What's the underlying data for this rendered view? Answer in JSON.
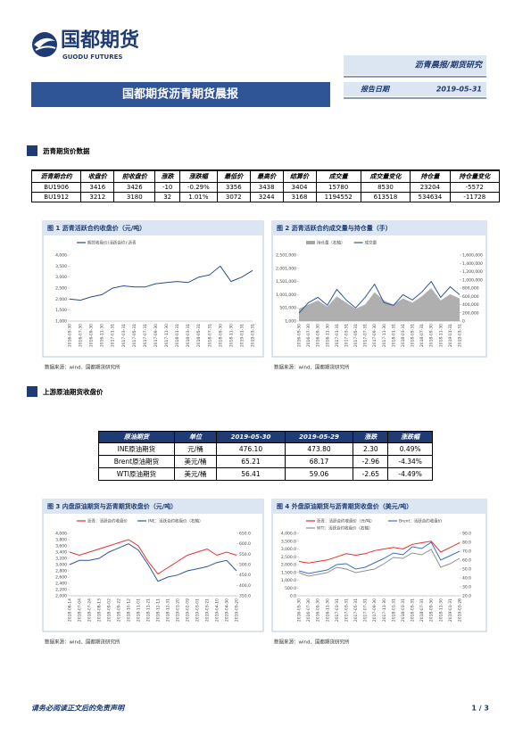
{
  "header": {
    "logo_name": "国都期货",
    "logo_subtitle": "GUODU FUTURES",
    "category": "沥青晨报/期货研究",
    "title": "国都期货沥青期货晨报",
    "date_label": "报告日期",
    "date": "2019-05-31"
  },
  "sections": [
    {
      "title": "沥青期货价数据"
    },
    {
      "title": "上游原油期货收盘价"
    }
  ],
  "tables": [
    {
      "header": [
        "沥青期合约",
        "收盘价",
        "前收盘价",
        "涨跌",
        "涨跌幅",
        "最低价",
        "最高价",
        "结算价",
        "成交量",
        "成交量变化",
        "持仓量",
        "持仓量变化"
      ],
      "rows": [
        [
          "BU1906",
          "3416",
          "3426",
          "-10",
          "-0.29%",
          "3356",
          "3438",
          "3404",
          "15780",
          "8530",
          "23204",
          "-5572"
        ],
        [
          "BU1912",
          "3212",
          "3180",
          "32",
          "1.01%",
          "3072",
          "3244",
          "3168",
          "1194552",
          "613518",
          "534634",
          "-11728"
        ]
      ]
    },
    {
      "header": [
        "原油期货",
        "单位",
        "2019-05-30",
        "2019-05-29",
        "涨跌",
        "涨跌幅"
      ],
      "rows": [
        [
          "INE原油期货",
          "元/桶",
          "476.10",
          "473.80",
          "2.30",
          "0.49%"
        ],
        [
          "Brent原油期货",
          "美元/桶",
          "65.21",
          "68.17",
          "-2.96",
          "-4.34%"
        ],
        [
          "WTI原油期货",
          "美元/桶",
          "56.41",
          "59.06",
          "-2.65",
          "-4.49%"
        ]
      ]
    }
  ],
  "figures": [
    {
      "caption": "图 1 沥青活跃合约收盘价（元/吨）",
      "source": "数据来源：wind、国都期货研究所",
      "chart": {
        "type": "line",
        "categories": [
          "2016-05-30",
          "2016-07-30",
          "2016-09-30",
          "2016-11-30",
          "2017-01-31",
          "2017-03-31",
          "2017-05-31",
          "2017-07-31",
          "2017-09-30",
          "2017-11-30",
          "2018-01-31",
          "2018-03-31",
          "2018-05-31",
          "2018-07-31",
          "2018-09-30",
          "2018-11-30",
          "2019-01-31",
          "2019-03-31"
        ],
        "ylim": [
          1000,
          4000
        ],
        "yticks": [
          {
            "value": 1000,
            "label": "1,000"
          },
          {
            "value": 1500,
            "label": "1,500"
          },
          {
            "value": 2000,
            "label": "2,000"
          },
          {
            "value": 2500,
            "label": "2,500"
          },
          {
            "value": 3000,
            "label": "3,000"
          },
          {
            "value": 3500,
            "label": "3,500"
          },
          {
            "value": 4000,
            "label": "4,000"
          }
        ],
        "series": [
          {
            "name": "期货收盘价(活跃合约):沥青",
            "color": "#2a4a8c",
            "values": [
              2000,
              1950,
              2100,
              2200,
              2500,
              2600,
              2550,
              2550,
              2700,
              2750,
              2800,
              2750,
              3000,
              3100,
              3500,
              2800,
              3000,
              3300
            ]
          }
        ]
      }
    },
    {
      "caption": "图 2 沥青活跃合约成交量与持仓量（手）",
      "source": "数据来源：wind、国都期货研究所",
      "chart": {
        "type": "line",
        "categories": [
          "2016-05-30",
          "2016-07-30",
          "2016-09-30",
          "2016-11-30",
          "2017-01-31",
          "2017-03-31",
          "2017-05-31",
          "2017-07-31",
          "2017-09-30",
          "2017-11-30",
          "2018-01-31",
          "2018-03-31",
          "2018-05-31",
          "2018-07-31",
          "2018-09-30",
          "2018-11-30",
          "2019-01-31",
          "2019-03-31"
        ],
        "ylim": [
          1000,
          2501000
        ],
        "yticks": [
          {
            "value": 1000,
            "label": "1,000"
          },
          {
            "value": 501000,
            "label": "501,000"
          },
          {
            "value": 1001000,
            "label": "1,001,000"
          },
          {
            "value": 1501000,
            "label": "1,501,000"
          },
          {
            "value": 2001000,
            "label": "2,001,000"
          },
          {
            "value": 2501000,
            "label": "2,501,000"
          }
        ],
        "y2lim": [
          0,
          1600000
        ],
        "y2ticks": [
          0,
          {
            "value": 200000,
            "label": "200,000"
          },
          {
            "value": 400000,
            "label": "400,000"
          },
          {
            "value": 600000,
            "label": "600,000"
          },
          {
            "value": 800000,
            "label": "800,000"
          },
          {
            "value": 1000000,
            "label": "1,000,000"
          },
          {
            "value": 1200000,
            "label": "1,200,000"
          },
          {
            "value": 1400000,
            "label": "1,400,000"
          },
          {
            "value": 1600000,
            "label": "1,600,000"
          }
        ],
        "series": [
          {
            "name": "持仓量（右轴）",
            "kind": "area",
            "axis": "y2",
            "color": "#a6a6a6",
            "values": [
              300000,
              400000,
              500000,
              350000,
              600000,
              450000,
              300000,
              400000,
              700000,
              500000,
              400000,
              550000,
              450000,
              600000,
              800000,
              500000,
              650000,
              550000
            ]
          },
          {
            "name": "成交量",
            "color": "#2f5597",
            "values": [
              300000,
              700000,
              900000,
              600000,
              1200000,
              800000,
              500000,
              900000,
              1400000,
              700000,
              600000,
              1000000,
              800000,
              1100000,
              1500000,
              900000,
              1300000,
              1000000
            ]
          }
        ]
      }
    },
    {
      "caption": "图 3 内盘原油期货与沥青期货收盘价（元/吨）",
      "source": "数据来源：wind、国都期货研究所",
      "chart": {
        "type": "line",
        "categories": [
          "2018-06-14",
          "2018-07-04",
          "2018-07-24",
          "2018-08-13",
          "2018-09-02",
          "2018-09-22",
          "2018-10-12",
          "2018-11-01",
          "2018-11-21",
          "2018-12-11",
          "2018-12-31",
          "2019-01-20",
          "2019-02-09",
          "2019-03-01",
          "2019-03-21",
          "2019-04-10",
          "2019-04-30",
          "2019-05-20"
        ],
        "ylim": [
          2000,
          4000
        ],
        "yticks": [
          {
            "value": 2000,
            "label": "2,000"
          },
          {
            "value": 2200,
            "label": "2,200"
          },
          {
            "value": 2400,
            "label": "2,400"
          },
          {
            "value": 2600,
            "label": "2,600"
          },
          {
            "value": 2800,
            "label": "2,800"
          },
          {
            "value": 3000,
            "label": "3,000"
          },
          {
            "value": 3200,
            "label": "3,200"
          },
          {
            "value": 3400,
            "label": "3,400"
          },
          {
            "value": 3600,
            "label": "3,600"
          },
          {
            "value": 3800,
            "label": "3,800"
          },
          {
            "value": 4000,
            "label": "4,000"
          }
        ],
        "y2lim": [
          350,
          650
        ],
        "y2ticks": [
          {
            "value": 350,
            "label": "350.0"
          },
          {
            "value": 400,
            "label": "400.0"
          },
          {
            "value": 450,
            "label": "450.0"
          },
          {
            "value": 500,
            "label": "500.0"
          },
          {
            "value": 550,
            "label": "550.0"
          },
          {
            "value": 600,
            "label": "600.0"
          },
          {
            "value": 650,
            "label": "650.0"
          }
        ],
        "series": [
          {
            "name": "沥青：活跃合约收盘价",
            "color": "#e03030",
            "values": [
              3400,
              3300,
              3400,
              3500,
              3600,
              3700,
              3800,
              3600,
              3100,
              2700,
              2900,
              3100,
              3300,
              3400,
              3500,
              3300,
              3400,
              3300
            ]
          },
          {
            "name": "INE：活跃合约收盘价（右轴）",
            "axis": "y2",
            "color": "#2f5597",
            "values": [
              500,
              520,
              520,
              530,
              560,
              580,
              600,
              570,
              500,
              420,
              440,
              450,
              470,
              480,
              490,
              510,
              520,
              470
            ]
          }
        ]
      }
    },
    {
      "caption": "图 4 外盘原油期货与沥青期货收盘价（美元/吨）",
      "source": "数据来源：wind、国都期货研究所",
      "chart": {
        "type": "line",
        "categories": [
          "2016-05-30",
          "2016-07-30",
          "2016-09-30",
          "2016-11-30",
          "2017-01-31",
          "2017-03-31",
          "2017-05-31",
          "2017-07-31",
          "2017-09-30",
          "2017-11-30",
          "2018-01-31",
          "2018-03-31",
          "2018-05-31",
          "2018-07-31",
          "2018-09-30",
          "2018-11-30",
          "2019-01-31",
          "2019-03-26"
        ],
        "ylim": [
          0,
          4000
        ],
        "yticks": [
          {
            "value": 0,
            "label": "0.0"
          },
          {
            "value": 500,
            "label": "500.0"
          },
          {
            "value": 1000,
            "label": "1,000.0"
          },
          {
            "value": 1500,
            "label": "1,500.0"
          },
          {
            "value": 2000,
            "label": "2,000.0"
          },
          {
            "value": 2500,
            "label": "2,500.0"
          },
          {
            "value": 3000,
            "label": "3,000.0"
          },
          {
            "value": 3500,
            "label": "3,500.0"
          },
          {
            "value": 4000,
            "label": "4,000.0"
          }
        ],
        "y2lim": [
          20,
          90
        ],
        "y2ticks": [
          {
            "value": 20,
            "label": "20.0"
          },
          {
            "value": 30,
            "label": "30.0"
          },
          {
            "value": 40,
            "label": "40.0"
          },
          {
            "value": 50,
            "label": "50.0"
          },
          {
            "value": 60,
            "label": "60.0"
          },
          {
            "value": 70,
            "label": "70.0"
          },
          {
            "value": 80,
            "label": "80.0"
          },
          {
            "value": 90,
            "label": "90.0"
          }
        ],
        "series": [
          {
            "name": "沥青：活跃合约收盘价（元/吨）",
            "color": "#e03030",
            "values": [
              2200,
              2100,
              2200,
              2300,
              2500,
              2700,
              2600,
              2700,
              2900,
              3000,
              3100,
              3000,
              3300,
              3400,
              3500,
              2800,
              3100,
              3400
            ]
          },
          {
            "name": "Brent：活跃合约收盘价",
            "axis": "y2",
            "color": "#3a6fc4",
            "values": [
              48,
              45,
              47,
              49,
              55,
              56,
              50,
              52,
              57,
              62,
              68,
              66,
              75,
              73,
              80,
              60,
              65,
              70
            ]
          },
          {
            "name": "WTI：活跃合约收盘价（右轴）",
            "axis": "y2",
            "color": "#909090",
            "values": [
              46,
              42,
              44,
              46,
              52,
              50,
              46,
              48,
              50,
              56,
              63,
              62,
              68,
              66,
              72,
              52,
              56,
              62
            ]
          }
        ]
      }
    }
  ],
  "footer": {
    "disclaimer": "请务必阅读正文后的免责声明",
    "page": "1 / 3"
  }
}
